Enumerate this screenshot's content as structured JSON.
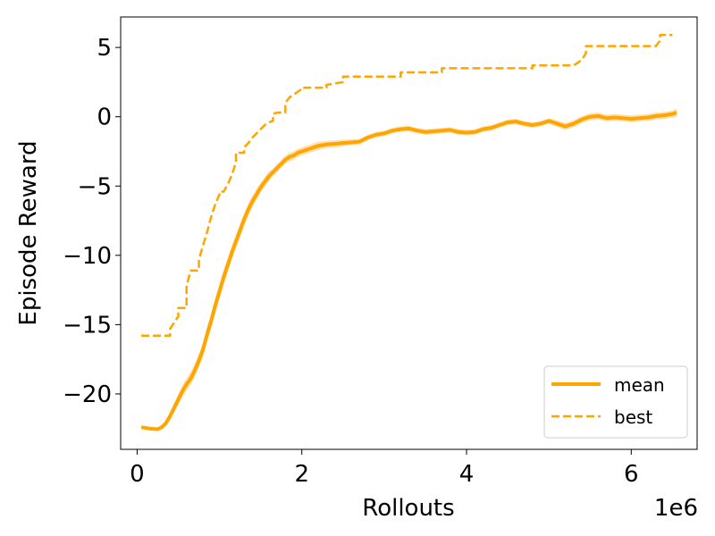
{
  "chart_data": {
    "type": "line",
    "xlabel": "Rollouts",
    "ylabel": "Episode Reward",
    "x_multiplier_label": "1e6",
    "xlim": [
      -0.2,
      6.8
    ],
    "ylim": [
      -24.0,
      7.2
    ],
    "xticks": [
      0,
      2,
      4,
      6
    ],
    "xtick_labels": [
      "0",
      "2",
      "4",
      "6"
    ],
    "yticks": [
      5,
      0,
      -5,
      -10,
      -15,
      -20
    ],
    "ytick_labels": [
      "5",
      "0",
      "−5",
      "−10",
      "−15",
      "−20"
    ],
    "grid": false,
    "legend_position": "lower-right",
    "colors": {
      "series": "#ffa500",
      "band": "#ffd699"
    },
    "series": [
      {
        "name": "mean",
        "style": "solid",
        "x": [
          0.05,
          0.15,
          0.25,
          0.3,
          0.35,
          0.4,
          0.45,
          0.5,
          0.55,
          0.6,
          0.65,
          0.7,
          0.75,
          0.8,
          0.85,
          0.9,
          0.95,
          1.0,
          1.05,
          1.1,
          1.15,
          1.2,
          1.25,
          1.3,
          1.35,
          1.4,
          1.45,
          1.5,
          1.55,
          1.6,
          1.65,
          1.7,
          1.75,
          1.8,
          1.85,
          1.9,
          1.95,
          2.0,
          2.05,
          2.1,
          2.15,
          2.2,
          2.3,
          2.4,
          2.5,
          2.6,
          2.7,
          2.8,
          2.9,
          3.0,
          3.1,
          3.2,
          3.3,
          3.4,
          3.5,
          3.6,
          3.7,
          3.8,
          3.9,
          4.0,
          4.1,
          4.2,
          4.3,
          4.4,
          4.5,
          4.6,
          4.7,
          4.8,
          4.9,
          5.0,
          5.1,
          5.2,
          5.3,
          5.4,
          5.5,
          5.6,
          5.7,
          5.8,
          5.9,
          6.0,
          6.1,
          6.2,
          6.3,
          6.4,
          6.5,
          6.55
        ],
        "values": [
          -22.4,
          -22.5,
          -22.55,
          -22.4,
          -22.1,
          -21.6,
          -21.0,
          -20.4,
          -19.8,
          -19.3,
          -18.9,
          -18.3,
          -17.6,
          -16.8,
          -15.7,
          -14.7,
          -13.6,
          -12.6,
          -11.6,
          -10.7,
          -9.8,
          -9.0,
          -8.2,
          -7.4,
          -6.7,
          -6.1,
          -5.6,
          -5.1,
          -4.7,
          -4.3,
          -4.0,
          -3.7,
          -3.4,
          -3.1,
          -2.9,
          -2.8,
          -2.6,
          -2.5,
          -2.4,
          -2.3,
          -2.2,
          -2.1,
          -2.0,
          -1.95,
          -1.9,
          -1.85,
          -1.8,
          -1.5,
          -1.3,
          -1.2,
          -1.0,
          -0.9,
          -0.85,
          -1.0,
          -1.1,
          -1.05,
          -1.0,
          -0.95,
          -1.1,
          -1.15,
          -1.1,
          -0.9,
          -0.8,
          -0.6,
          -0.4,
          -0.35,
          -0.5,
          -0.6,
          -0.5,
          -0.3,
          -0.5,
          -0.7,
          -0.5,
          -0.2,
          0.0,
          0.05,
          -0.1,
          -0.05,
          -0.1,
          -0.15,
          -0.1,
          -0.05,
          0.05,
          0.1,
          0.2,
          0.3
        ],
        "band": [
          0.1,
          0.1,
          0.1,
          0.15,
          0.2,
          0.3,
          0.35,
          0.4,
          0.45,
          0.45,
          0.45,
          0.5,
          0.5,
          0.5,
          0.55,
          0.55,
          0.55,
          0.55,
          0.55,
          0.5,
          0.5,
          0.5,
          0.5,
          0.45,
          0.45,
          0.4,
          0.4,
          0.35,
          0.35,
          0.35,
          0.3,
          0.3,
          0.3,
          0.3,
          0.3,
          0.3,
          0.3,
          0.3,
          0.3,
          0.3,
          0.3,
          0.3,
          0.25,
          0.25,
          0.25,
          0.2,
          0.2,
          0.2,
          0.2,
          0.2,
          0.2,
          0.2,
          0.2,
          0.2,
          0.2,
          0.2,
          0.2,
          0.2,
          0.2,
          0.2,
          0.2,
          0.2,
          0.2,
          0.2,
          0.2,
          0.2,
          0.2,
          0.2,
          0.2,
          0.2,
          0.25,
          0.25,
          0.25,
          0.25,
          0.25,
          0.25,
          0.25,
          0.25,
          0.25,
          0.25,
          0.25,
          0.25,
          0.25,
          0.25,
          0.25,
          0.3
        ]
      },
      {
        "name": "best",
        "style": "dashed",
        "x": [
          0.05,
          0.4,
          0.4,
          0.5,
          0.5,
          0.6,
          0.6,
          0.65,
          0.65,
          0.75,
          0.75,
          0.8,
          0.85,
          0.9,
          0.95,
          1.0,
          1.0,
          1.05,
          1.1,
          1.15,
          1.2,
          1.2,
          1.3,
          1.3,
          1.35,
          1.4,
          1.45,
          1.5,
          1.55,
          1.6,
          1.65,
          1.65,
          1.7,
          1.75,
          1.8,
          1.8,
          1.85,
          1.9,
          1.95,
          2.0,
          2.0,
          2.3,
          2.3,
          2.4,
          2.5,
          2.5,
          3.2,
          3.2,
          3.7,
          3.7,
          4.8,
          4.8,
          5.3,
          5.35,
          5.4,
          5.45,
          5.45,
          6.3,
          6.35,
          6.35,
          6.5
        ],
        "values": [
          -15.8,
          -15.8,
          -15.3,
          -14.4,
          -13.8,
          -13.8,
          -12.2,
          -11.1,
          -11.1,
          -11.1,
          -10.3,
          -9.3,
          -8.3,
          -7.2,
          -6.3,
          -5.6,
          -5.4,
          -5.4,
          -4.9,
          -4.2,
          -3.3,
          -2.6,
          -2.6,
          -2.2,
          -1.9,
          -1.5,
          -1.2,
          -0.9,
          -0.6,
          -0.4,
          -0.3,
          0.2,
          0.3,
          0.3,
          0.3,
          1.0,
          1.4,
          1.6,
          1.8,
          2.0,
          2.1,
          2.1,
          2.3,
          2.4,
          2.5,
          2.9,
          2.9,
          3.2,
          3.2,
          3.5,
          3.5,
          3.7,
          3.7,
          3.9,
          4.1,
          4.6,
          5.1,
          5.1,
          5.5,
          5.9,
          5.9
        ]
      }
    ]
  }
}
